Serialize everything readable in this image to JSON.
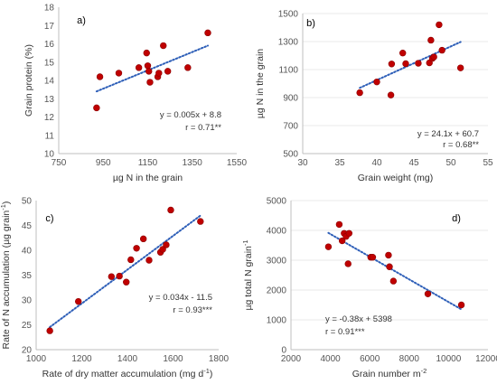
{
  "colors": {
    "point": "#c00000",
    "point_edge": "#8b0000",
    "trend": "#2e5fb8",
    "axis": "#bfbfbf",
    "grid": "#e0e0e0"
  },
  "chart_data": [
    {
      "type": "scatter",
      "panel": "a)",
      "xlabel": "µg N in the grain",
      "ylabel": "Grain protein (%)",
      "xlim": [
        750,
        1550
      ],
      "ylim": [
        10,
        18
      ],
      "xticks": [
        750,
        950,
        1150,
        1350,
        1550
      ],
      "yticks": [
        10,
        11,
        12,
        13,
        14,
        15,
        16,
        17,
        18
      ],
      "grid": false,
      "x": [
        920,
        935,
        1020,
        1110,
        1145,
        1150,
        1155,
        1160,
        1195,
        1200,
        1220,
        1240,
        1330,
        1420
      ],
      "y": [
        12.5,
        14.2,
        14.4,
        14.7,
        15.5,
        14.8,
        14.5,
        13.9,
        14.2,
        14.4,
        15.9,
        14.5,
        14.7,
        16.6
      ],
      "trendline": {
        "slope": 0.005,
        "intercept": 8.8,
        "x_range": [
          920,
          1420
        ]
      },
      "equation": "y = 0.005x + 8.8",
      "r_text": "r = 0.71**"
    },
    {
      "type": "scatter",
      "panel": "b)",
      "xlabel": "Grain weight (mg)",
      "ylabel": "µg N in the grain",
      "xlim": [
        30,
        55
      ],
      "ylim": [
        500,
        1500
      ],
      "xticks": [
        30,
        35,
        40,
        45,
        50,
        55
      ],
      "yticks": [
        500,
        700,
        900,
        1100,
        1300,
        1500
      ],
      "grid": true,
      "x": [
        37.7,
        40.0,
        41.9,
        42.0,
        43.5,
        43.9,
        45.6,
        47.1,
        47.3,
        47.5,
        47.7,
        48.4,
        48.8,
        51.3
      ],
      "y": [
        935,
        1012,
        918,
        1140,
        1218,
        1142,
        1145,
        1148,
        1310,
        1180,
        1190,
        1420,
        1238,
        1112
      ],
      "trendline": {
        "slope": 24.1,
        "intercept": 60.7,
        "x_range": [
          37.7,
          51.3
        ]
      },
      "equation": "y = 24.1x + 60.7",
      "r_text": "r = 0.68**"
    },
    {
      "type": "scatter",
      "panel": "c)",
      "xlabel": "Rate of dry matter accumulation (mg d",
      "xlabel_sup": "-1",
      "xlabel_end": ")",
      "ylabel": "Rate of N accumulation (µg  grain",
      "ylabel_sup": "-1",
      "ylabel_end": ")",
      "xlim": [
        1000,
        1800
      ],
      "ylim": [
        20,
        50
      ],
      "xticks": [
        1000,
        1200,
        1400,
        1600,
        1800
      ],
      "yticks": [
        20,
        25,
        30,
        35,
        40,
        45,
        50
      ],
      "grid": false,
      "x": [
        1060,
        1185,
        1330,
        1365,
        1395,
        1415,
        1440,
        1470,
        1495,
        1545,
        1555,
        1570,
        1590,
        1720
      ],
      "y": [
        23.8,
        29.7,
        34.7,
        34.8,
        33.6,
        38.1,
        40.4,
        42.3,
        38.0,
        39.6,
        40.2,
        41.1,
        48.1,
        45.8
      ],
      "trendline": {
        "slope": 0.034,
        "intercept": -11.5,
        "x_range": [
          1060,
          1720
        ]
      },
      "equation": "y = 0.034x - 11.5",
      "r_text": "r = 0.93***"
    },
    {
      "type": "scatter",
      "panel": "d)",
      "xlabel": "Grain number m",
      "xlabel_sup": "-2",
      "xlabel_end": "",
      "ylabel": "µg total N grain",
      "ylabel_sup": "-1",
      "ylabel_end": "",
      "xlim": [
        2000,
        12000
      ],
      "ylim": [
        0,
        5000
      ],
      "xticks": [
        2000,
        4000,
        6000,
        8000,
        10000,
        12000
      ],
      "yticks": [
        0,
        1000,
        2000,
        3000,
        4000,
        5000
      ],
      "grid": true,
      "x": [
        3900,
        4450,
        4600,
        4700,
        4800,
        4900,
        4950,
        6050,
        6150,
        6950,
        7000,
        7200,
        8950,
        10650
      ],
      "y": [
        3450,
        4200,
        3650,
        3900,
        3800,
        2880,
        3900,
        3100,
        3100,
        3170,
        2780,
        2300,
        1870,
        1500
      ],
      "trendline": {
        "slope": -0.38,
        "intercept": 5398,
        "x_range": [
          3900,
          10650
        ]
      },
      "equation": "y = -0.38x + 5398",
      "r_text": "r = 0.91***"
    }
  ]
}
